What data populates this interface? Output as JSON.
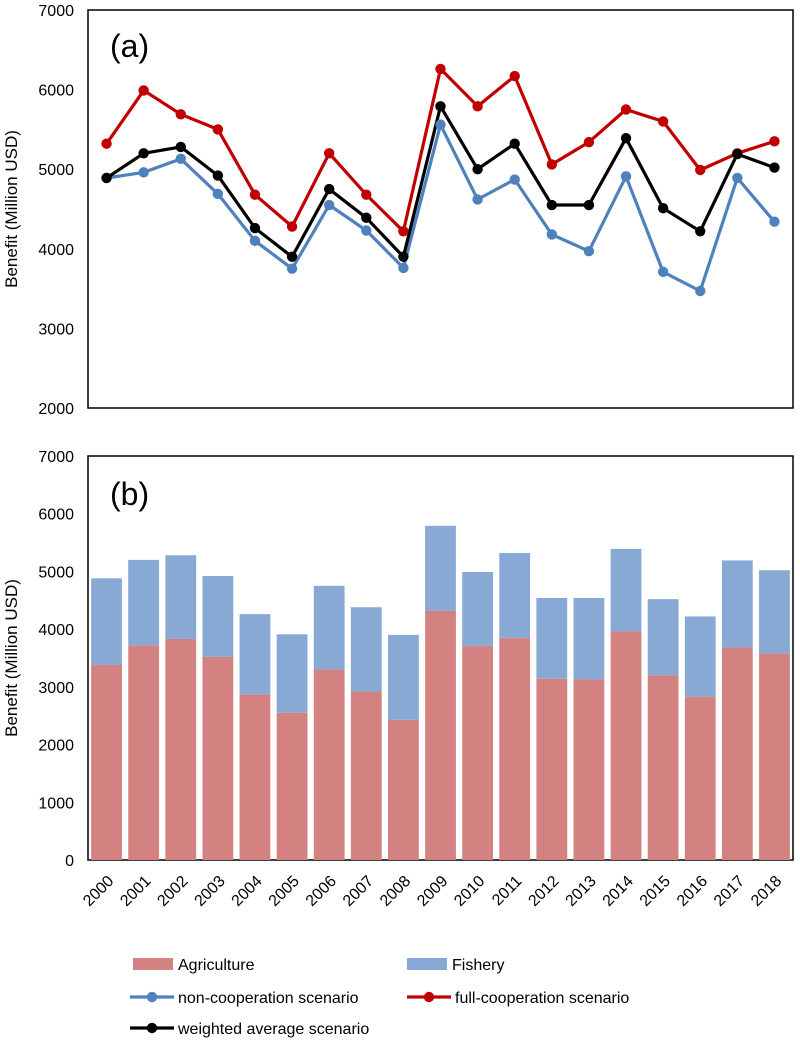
{
  "chart_data": [
    {
      "type": "line",
      "panel_label": "(a)",
      "ylabel": "Benefit (Million USD)",
      "ylim": [
        2000,
        7000
      ],
      "yticks": [
        2000,
        3000,
        4000,
        5000,
        6000,
        7000
      ],
      "x": [
        "2000",
        "2001",
        "2002",
        "2003",
        "2004",
        "2005",
        "2006",
        "2007",
        "2008",
        "2009",
        "2010",
        "2011",
        "2012",
        "2013",
        "2014",
        "2015",
        "2016",
        "2017",
        "2018"
      ],
      "grid": false,
      "series": [
        {
          "name": "non-cooperation scenario",
          "color": "#4f81bd",
          "values": [
            4890,
            4960,
            5130,
            4690,
            4100,
            3750,
            4550,
            4230,
            3760,
            5560,
            4620,
            4870,
            4180,
            3970,
            4910,
            3710,
            3470,
            4890,
            4340
          ]
        },
        {
          "name": "full-cooperation scenario",
          "color": "#c00000",
          "values": [
            5320,
            5990,
            5690,
            5500,
            4680,
            4280,
            5200,
            4680,
            4220,
            6260,
            5790,
            6170,
            5060,
            5340,
            5750,
            5600,
            4990,
            5200,
            5350
          ]
        },
        {
          "name": "weighted average scenario",
          "color": "#000000",
          "values": [
            4890,
            5200,
            5280,
            4920,
            4260,
            3900,
            4750,
            4390,
            3900,
            5790,
            5000,
            5320,
            4550,
            4550,
            5390,
            4510,
            4220,
            5190,
            5020
          ]
        }
      ]
    },
    {
      "type": "bar",
      "stacked": true,
      "panel_label": "(b)",
      "ylabel": "Benefit (Million USD)",
      "ylim": [
        0,
        7000
      ],
      "yticks": [
        0,
        1000,
        2000,
        3000,
        4000,
        5000,
        6000,
        7000
      ],
      "categories": [
        "2000",
        "2001",
        "2002",
        "2003",
        "2004",
        "2005",
        "2006",
        "2007",
        "2008",
        "2009",
        "2010",
        "2011",
        "2012",
        "2013",
        "2014",
        "2015",
        "2016",
        "2017",
        "2018"
      ],
      "grid": false,
      "series": [
        {
          "name": "Agriculture",
          "color": "#d38181",
          "values": [
            3380,
            3720,
            3830,
            3520,
            2870,
            2550,
            3300,
            2920,
            2430,
            4320,
            3710,
            3850,
            3140,
            3130,
            3960,
            3200,
            2830,
            3680,
            3580
          ]
        },
        {
          "name": "Fishery",
          "color": "#87a9d3",
          "values": [
            1500,
            1480,
            1450,
            1400,
            1390,
            1360,
            1450,
            1460,
            1470,
            1470,
            1280,
            1470,
            1400,
            1410,
            1430,
            1320,
            1390,
            1510,
            1440
          ]
        }
      ]
    }
  ],
  "legend": [
    {
      "label": "Agriculture",
      "kind": "bar",
      "color": "#d38181"
    },
    {
      "label": "Fishery",
      "kind": "bar",
      "color": "#87a9d3"
    },
    {
      "label": "non-cooperation scenario",
      "kind": "line",
      "color": "#4f81bd"
    },
    {
      "label": "full-cooperation scenario",
      "kind": "line",
      "color": "#c00000"
    },
    {
      "label": "weighted average scenario",
      "kind": "line",
      "color": "#000000"
    }
  ]
}
